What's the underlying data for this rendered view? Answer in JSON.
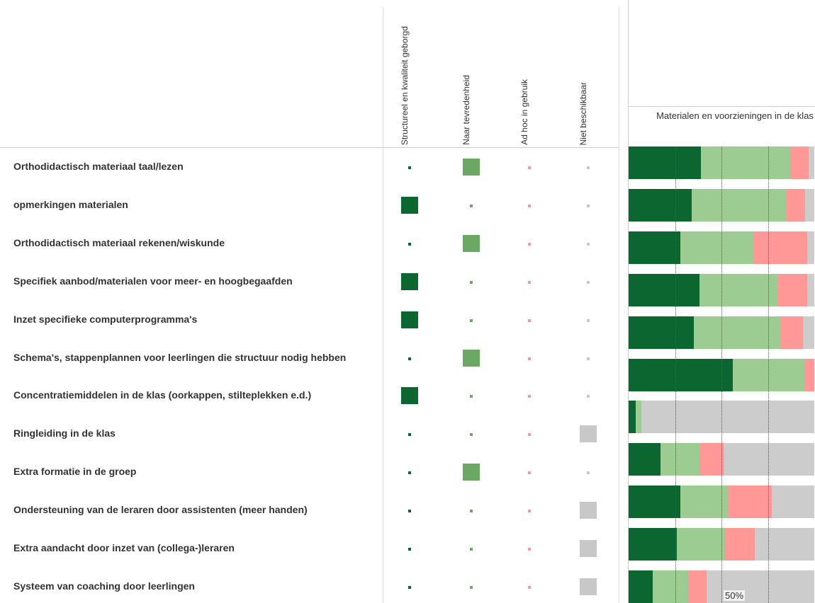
{
  "chart_data": {
    "type": "stacked-bar",
    "title": "Materialen en voorzieningen in de klas",
    "categories": [
      "Orthodidactisch materiaal taal/lezen",
      "opmerkingen materialen",
      "Orthodidactisch materiaal rekenen/wiskunde",
      "Specifiek aanbod/materialen voor meer- en hoogbegaafden",
      "Inzet specifieke computerprogramma's",
      "Schema's, stappenplannen voor leerlingen die structuur nodig hebben",
      "Concentratiemiddelen in de klas (oorkappen, stilteplekken e.d.)",
      "Ringleiding in de klas",
      "Extra formatie in de groep",
      "Ondersteuning van de leraren door assistenten (meer handen)",
      "Extra aandacht door inzet van (collega-)leraren",
      "Systeem van coaching door leerlingen"
    ],
    "series": [
      {
        "name": "Structureel en kwaliteit geborgd",
        "color": "#0b6630",
        "marker_color": "#0b6630",
        "values": [
          39,
          34,
          28,
          38,
          35,
          56,
          4,
          17,
          28,
          26,
          13,
          null
        ]
      },
      {
        "name": "Naar tevredenheid",
        "color": "#9dcc92",
        "marker_color": "#6aa864",
        "values": [
          48,
          51,
          39,
          42,
          47,
          39,
          3,
          21,
          26,
          26,
          19,
          null
        ]
      },
      {
        "name": "Ad hoc in gebruik",
        "color": "#ff9896",
        "marker_color": "#f49a9a",
        "values": [
          10,
          10,
          29,
          16,
          12,
          5,
          0,
          13,
          23,
          16,
          10,
          null
        ]
      },
      {
        "name": "Niet beschikbaar",
        "color": "#cccccc",
        "marker_color": "#c8c8c8",
        "values": [
          3,
          5,
          4,
          4,
          6,
          0,
          93,
          49,
          23,
          32,
          58,
          null
        ]
      }
    ],
    "highlight": [
      1,
      0,
      1,
      0,
      0,
      1,
      0,
      3,
      1,
      3,
      3,
      3
    ],
    "xlim": [
      0,
      100
    ],
    "reference_lines": [
      25,
      50,
      75
    ],
    "xticks": [
      {
        "value": 50,
        "label": "50%"
      }
    ]
  }
}
